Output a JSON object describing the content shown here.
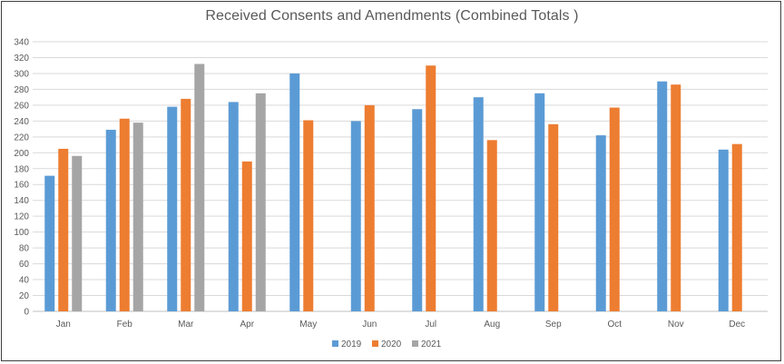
{
  "chart_data": {
    "type": "bar",
    "title": "Received Consents and Amendments (Combined Totals )",
    "xlabel": "",
    "ylabel": "",
    "ylim": [
      0,
      340
    ],
    "yticks": [
      0,
      20,
      40,
      60,
      80,
      100,
      120,
      140,
      160,
      180,
      200,
      220,
      240,
      260,
      280,
      300,
      320,
      340
    ],
    "grid": true,
    "legend_position": "bottom",
    "categories": [
      "Jan",
      "Feb",
      "Mar",
      "Apr",
      "May",
      "Jun",
      "Jul",
      "Aug",
      "Sep",
      "Oct",
      "Nov",
      "Dec"
    ],
    "series": [
      {
        "name": "2019",
        "color": "#5b9bd5",
        "values": [
          171,
          229,
          258,
          264,
          300,
          240,
          255,
          270,
          275,
          222,
          290,
          204
        ]
      },
      {
        "name": "2020",
        "color": "#ed7d31",
        "values": [
          205,
          243,
          268,
          189,
          241,
          260,
          310,
          216,
          236,
          257,
          286,
          211
        ]
      },
      {
        "name": "2021",
        "color": "#a5a5a5",
        "values": [
          196,
          238,
          312,
          275,
          null,
          null,
          null,
          null,
          null,
          null,
          null,
          null
        ]
      }
    ]
  }
}
